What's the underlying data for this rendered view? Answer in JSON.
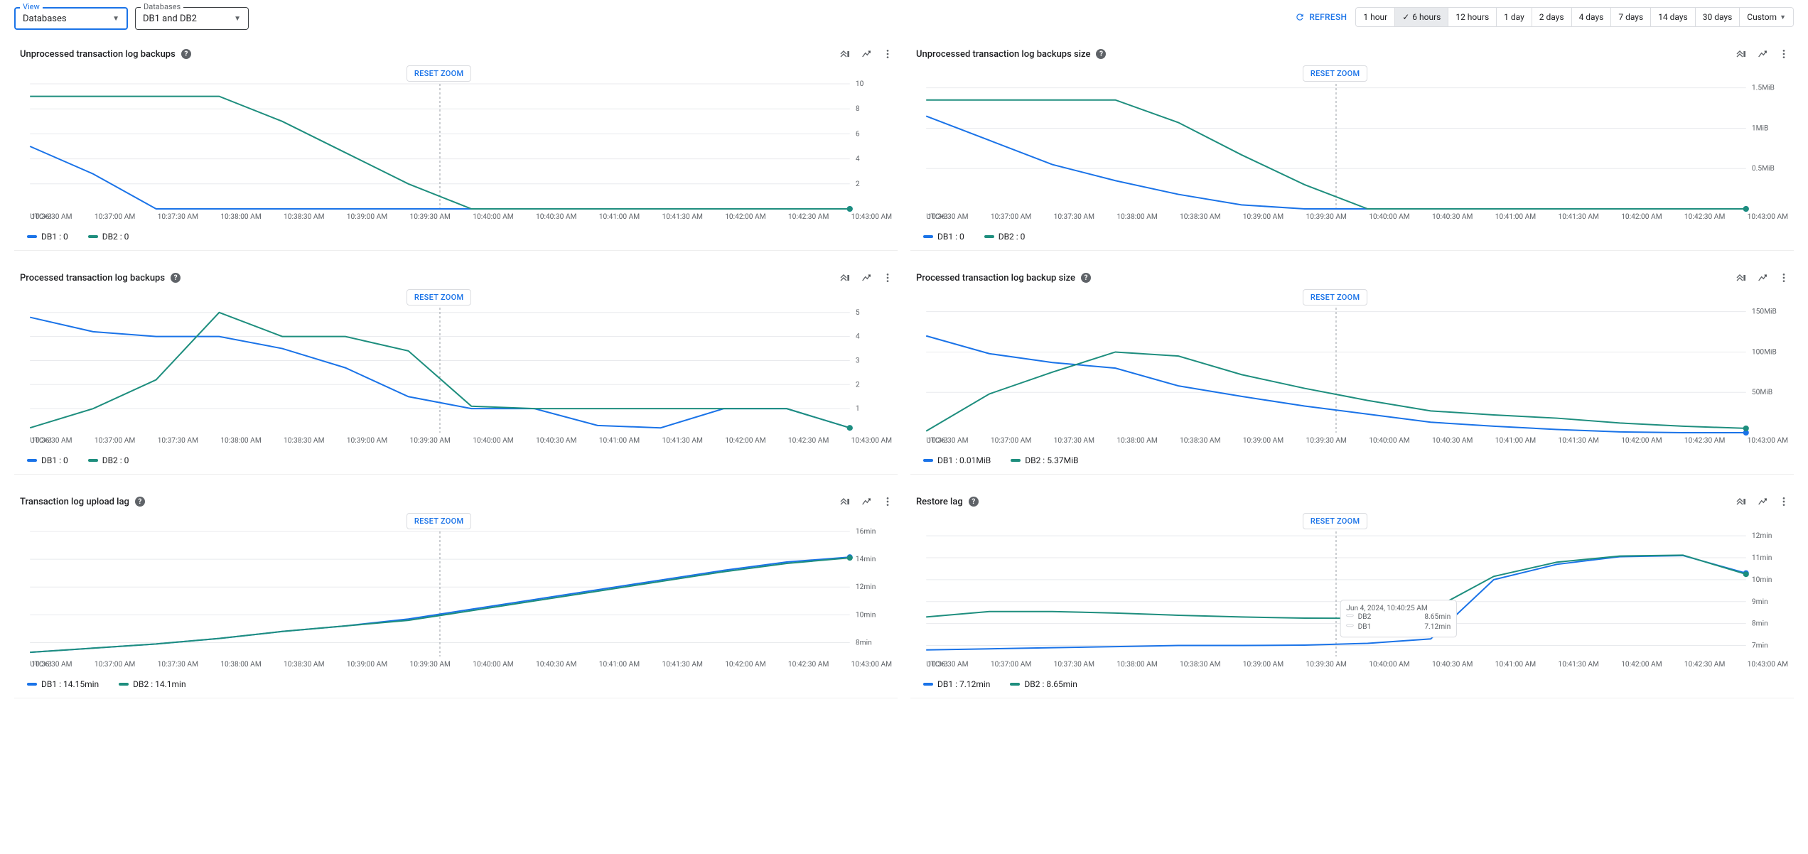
{
  "colors": {
    "db1": "#1a73e8",
    "db2": "#1e8e7e",
    "grid": "#e8eaed",
    "axis": "#9aa0a6",
    "text_muted": "#5f6368",
    "primary_text": "#202124",
    "bg": "#ffffff",
    "link": "#1a73e8",
    "border": "#dadce0"
  },
  "topbar": {
    "view": {
      "label": "View",
      "value": "Databases"
    },
    "databases": {
      "label": "Databases",
      "value": "DB1 and DB2"
    },
    "refresh_label": "REFRESH",
    "time_options": [
      "1 hour",
      "6 hours",
      "12 hours",
      "1 day",
      "2 days",
      "4 days",
      "7 days",
      "14 days",
      "30 days",
      "Custom"
    ],
    "time_selected": "6 hours"
  },
  "x_axis": {
    "label_first": "UTC+3",
    "ticks": [
      "10:36:30 AM",
      "10:37:00 AM",
      "10:37:30 AM",
      "10:38:00 AM",
      "10:38:30 AM",
      "10:39:00 AM",
      "10:39:30 AM",
      "10:40:00 AM",
      "10:40:30 AM",
      "10:41:00 AM",
      "10:41:30 AM",
      "10:42:00 AM",
      "10:42:30 AM",
      "10:43:00 AM"
    ],
    "zoom_fraction": 0.5
  },
  "reset_zoom_label": "RESET ZOOM",
  "charts": [
    {
      "id": "unprocessed_count",
      "title": "Unprocessed transaction log backups",
      "ylabel_format": "int",
      "yticks": [
        "10",
        "8",
        "6",
        "4",
        "2"
      ],
      "ymin": 0,
      "ymax": 10,
      "series": {
        "DB1": [
          5,
          2.8,
          0,
          0,
          0,
          0,
          0,
          0,
          0,
          0,
          0,
          0,
          0,
          0
        ],
        "DB2": [
          9,
          9,
          9,
          9,
          7,
          4.5,
          2,
          0,
          0,
          0,
          0,
          0,
          0,
          0
        ]
      },
      "legend": {
        "DB1": "DB1 : 0",
        "DB2": "DB2 : 0"
      }
    },
    {
      "id": "unprocessed_size",
      "title": "Unprocessed transaction log backups size",
      "ylabel_format": "MiB",
      "yticks": [
        "1.5MiB",
        "1MiB",
        "0.5MiB"
      ],
      "ymin": 0,
      "ymax": 1.55,
      "series": {
        "DB1": [
          1.15,
          0.85,
          0.55,
          0.35,
          0.18,
          0.05,
          0,
          0,
          0,
          0,
          0,
          0,
          0,
          0
        ],
        "DB2": [
          1.35,
          1.35,
          1.35,
          1.35,
          1.07,
          0.67,
          0.3,
          0,
          0,
          0,
          0,
          0,
          0,
          0
        ]
      },
      "legend": {
        "DB1": "DB1 : 0",
        "DB2": "DB2 : 0"
      }
    },
    {
      "id": "processed_count",
      "title": "Processed transaction log backups",
      "ylabel_format": "int",
      "yticks": [
        "5",
        "4",
        "3",
        "2",
        "1"
      ],
      "ymin": 0,
      "ymax": 5.2,
      "series": {
        "DB1": [
          4.8,
          4.2,
          4.0,
          4.0,
          3.5,
          2.7,
          1.5,
          1.0,
          1.0,
          0.3,
          0.2,
          1.0,
          1.0,
          0.2
        ],
        "DB2": [
          0.2,
          1.0,
          2.2,
          5.0,
          4.0,
          4.0,
          3.4,
          1.1,
          1.0,
          1.0,
          1.0,
          1.0,
          1.0,
          0.2
        ]
      },
      "legend": {
        "DB1": "DB1 : 0",
        "DB2": "DB2 : 0"
      }
    },
    {
      "id": "processed_size",
      "title": "Processed transaction log backup size",
      "ylabel_format": "MiB",
      "yticks": [
        "150MiB",
        "100MiB",
        "50MiB"
      ],
      "ymin": 0,
      "ymax": 155,
      "series": {
        "DB1": [
          120,
          98,
          87,
          80,
          58,
          45,
          33,
          23,
          13,
          8,
          4,
          1,
          0.05,
          0.01
        ],
        "DB2": [
          2,
          48,
          75,
          100,
          95,
          72,
          55,
          40,
          27,
          22,
          18,
          12,
          8,
          5.4
        ]
      },
      "legend": {
        "DB1": "DB1 : 0.01MiB",
        "DB2": "DB2 : 5.37MiB"
      }
    },
    {
      "id": "upload_lag",
      "title": "Transaction log upload lag",
      "ylabel_format": "min",
      "yticks": [
        "16min",
        "14min",
        "12min",
        "10min",
        "8min"
      ],
      "ymin": 7,
      "ymax": 16,
      "series": {
        "DB1": [
          7.3,
          7.6,
          7.9,
          8.3,
          8.8,
          9.2,
          9.7,
          10.4,
          11.1,
          11.8,
          12.5,
          13.2,
          13.8,
          14.15
        ],
        "DB2": [
          7.3,
          7.6,
          7.9,
          8.3,
          8.8,
          9.2,
          9.6,
          10.3,
          11.0,
          11.7,
          12.4,
          13.1,
          13.7,
          14.1
        ]
      },
      "legend": {
        "DB1": "DB1 : 14.15min",
        "DB2": "DB2 : 14.1min"
      }
    },
    {
      "id": "restore_lag",
      "title": "Restore lag",
      "ylabel_format": "min",
      "yticks": [
        "12min",
        "11min",
        "10min",
        "9min",
        "8min",
        "7min"
      ],
      "ymin": 6.5,
      "ymax": 12.2,
      "series": {
        "DB1": [
          6.8,
          6.85,
          6.9,
          6.95,
          7.0,
          7.0,
          7.02,
          7.1,
          7.3,
          10.0,
          10.7,
          11.05,
          11.1,
          10.3
        ],
        "DB2": [
          8.3,
          8.55,
          8.55,
          8.48,
          8.38,
          8.3,
          8.25,
          8.24,
          8.6,
          10.15,
          10.8,
          11.08,
          11.12,
          10.25
        ]
      },
      "legend": {
        "DB1": "DB1 : 7.12min",
        "DB2": "DB2 : 8.65min"
      },
      "tooltip": {
        "header": "Jun 4, 2024, 10:40:25 AM",
        "rows": [
          {
            "label": "DB2",
            "value": "8.65min",
            "color": "#1e8e7e"
          },
          {
            "label": "DB1",
            "value": "7.12min",
            "color": "#1a73e8"
          }
        ]
      }
    }
  ]
}
